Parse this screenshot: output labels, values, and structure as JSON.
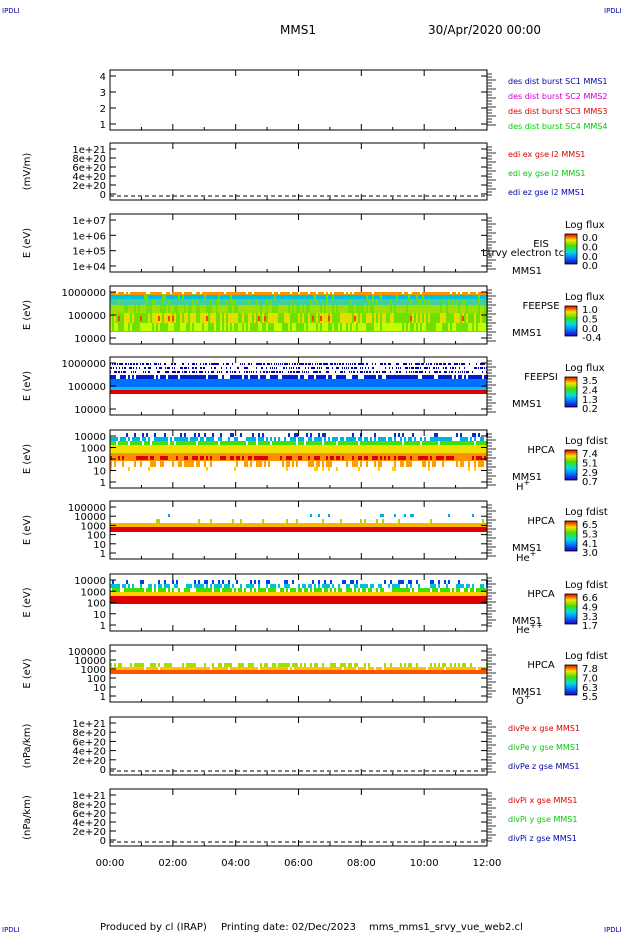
{
  "header": {
    "corner_left_top": "IPDLI",
    "corner_right_top": "IPDLI",
    "spacecraft": "MMS1",
    "datetime": "30/Apr/2020 00:00",
    "corner_left_bottom": "IPDLI",
    "corner_right_bottom": "IPDLI"
  },
  "footer": {
    "produced": "Produced by cl (IRAP)",
    "printing": "Printing date: 02/Dec/2023",
    "file": "mms_mms1_srvy_vue_web2.cl"
  },
  "colors": {
    "blue": "#0000aa",
    "magenta": "#cc00cc",
    "red": "#dd0000",
    "green": "#00cc00"
  },
  "chart_data": {
    "type": "heatmap",
    "xlim": [
      "00:00",
      "12:00"
    ],
    "x_ticks": [
      "00:00",
      "02:00",
      "04:00",
      "06:00",
      "08:00",
      "10:00",
      "12:00"
    ],
    "panels": [
      {
        "id": "p1",
        "ylabel": "",
        "yticks": [
          "1",
          "2",
          "3",
          "4"
        ],
        "right_labels": [
          {
            "text": "des dist burst SC1 MMS1",
            "color": "#0000aa"
          },
          {
            "text": "des dist burst SC2 MMS2",
            "color": "#cc00cc"
          },
          {
            "text": "des dist burst SC3 MMS3",
            "color": "#dd0000"
          },
          {
            "text": "des dist burst SC4 MMS4",
            "color": "#00cc00"
          }
        ]
      },
      {
        "id": "p2",
        "ylabel": "(mV/m)",
        "yticks": [
          "0",
          "2e+20",
          "4e+20",
          "6e+20",
          "8e+20",
          "1e+21"
        ],
        "right_labels": [
          {
            "text": "edi ex gse l2 MMS1",
            "color": "#dd0000"
          },
          {
            "text": "edi ey gse l2 MMS1",
            "color": "#00cc00"
          },
          {
            "text": "edi ez gse l2 MMS1",
            "color": "#0000aa"
          }
        ]
      },
      {
        "id": "p3",
        "ylabel": "E (eV)",
        "yticks": [
          "1e+04",
          "1e+05",
          "1e+06",
          "1e+07"
        ],
        "instrument": [
          "EIS",
          "MMS1"
        ],
        "overlay": "Ltrvy electron tc",
        "cbar_title": "Log flux",
        "cbar_ticks": [
          "0.0",
          "0.0",
          "0.0",
          "0.0"
        ]
      },
      {
        "id": "p4",
        "ylabel": "E (eV)",
        "yticks": [
          "10000",
          "100000",
          "1000000"
        ],
        "instrument": [
          "FEEPSE",
          "MMS1"
        ],
        "cbar_title": "Log flux",
        "cbar_ticks": [
          "1.0",
          "0.5",
          "0.0",
          "-0.4"
        ]
      },
      {
        "id": "p5",
        "ylabel": "E (eV)",
        "yticks": [
          "10000",
          "100000",
          "1000000"
        ],
        "instrument": [
          "FEEPSI",
          "MMS1"
        ],
        "cbar_title": "Log flux",
        "cbar_ticks": [
          "3.5",
          "2.4",
          "1.3",
          "0.2"
        ]
      },
      {
        "id": "p6",
        "ylabel": "E (eV)",
        "yticks": [
          "1",
          "10",
          "100",
          "1000",
          "10000"
        ],
        "instrument": [
          "HPCA",
          "MMS1"
        ],
        "species": "H",
        "species_sup": "+",
        "cbar_title": "Log fdist",
        "cbar_ticks": [
          "7.4",
          "5.1",
          "2.9",
          "0.7"
        ]
      },
      {
        "id": "p7",
        "ylabel": "E (eV)",
        "yticks": [
          "1",
          "10",
          "100",
          "1000",
          "10000",
          "100000"
        ],
        "instrument": [
          "HPCA",
          "MMS1"
        ],
        "species": "He",
        "species_sup": "+",
        "cbar_title": "Log fdist",
        "cbar_ticks": [
          "6.5",
          "5.3",
          "4.1",
          "3.0"
        ]
      },
      {
        "id": "p8",
        "ylabel": "E (eV)",
        "yticks": [
          "1",
          "10",
          "100",
          "1000",
          "10000"
        ],
        "instrument": [
          "HPCA",
          "MMS1"
        ],
        "species": "He",
        "species_sup": "++",
        "cbar_title": "Log fdist",
        "cbar_ticks": [
          "6.6",
          "4.9",
          "3.3",
          "1.7"
        ]
      },
      {
        "id": "p9",
        "ylabel": "E (eV)",
        "yticks": [
          "1",
          "10",
          "100",
          "1000",
          "10000",
          "100000"
        ],
        "instrument": [
          "HPCA",
          "MMS1"
        ],
        "species": "O",
        "species_sup": "+",
        "cbar_title": "Log fdist",
        "cbar_ticks": [
          "7.8",
          "7.0",
          "6.3",
          "5.5"
        ]
      },
      {
        "id": "p10",
        "ylabel": "(nPa/km)",
        "yticks": [
          "0",
          "2e+20",
          "4e+20",
          "6e+20",
          "8e+20",
          "1e+21"
        ],
        "right_labels": [
          {
            "text": "divPe x gse MMS1",
            "color": "#dd0000"
          },
          {
            "text": "divPe y gse MMS1",
            "color": "#00cc00"
          },
          {
            "text": "divPe z gse MMS1",
            "color": "#0000aa"
          }
        ]
      },
      {
        "id": "p11",
        "ylabel": "(nPa/km)",
        "yticks": [
          "0",
          "2e+20",
          "4e+20",
          "6e+20",
          "8e+20",
          "1e+21"
        ],
        "right_labels": [
          {
            "text": "divPi x gse MMS1",
            "color": "#dd0000"
          },
          {
            "text": "divPi y gse MMS1",
            "color": "#00cc00"
          },
          {
            "text": "divPi z gse MMS1",
            "color": "#0000aa"
          }
        ]
      }
    ]
  }
}
